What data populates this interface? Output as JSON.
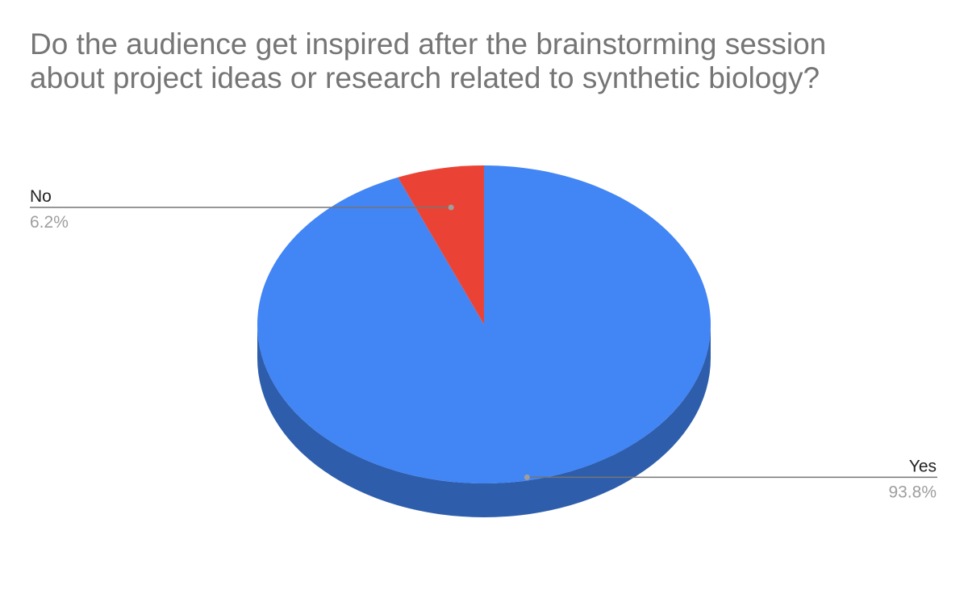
{
  "chart_data": {
    "type": "pie",
    "title_lines": [
      "Do the audience get inspired after the brainstorming session",
      "about project ideas or research related to synthetic biology?"
    ],
    "start_angle_deg": 0,
    "style": "3d",
    "slices": [
      {
        "label": "Yes",
        "value": 93.8,
        "display": "93.8%",
        "color": "#4285f4",
        "side_color": "#2e5eab",
        "label_position": "bottom-right"
      },
      {
        "label": "No",
        "value": 6.2,
        "display": "6.2%",
        "color": "#ea4335",
        "side_color": "#a32f25",
        "label_position": "top-left"
      }
    ]
  }
}
